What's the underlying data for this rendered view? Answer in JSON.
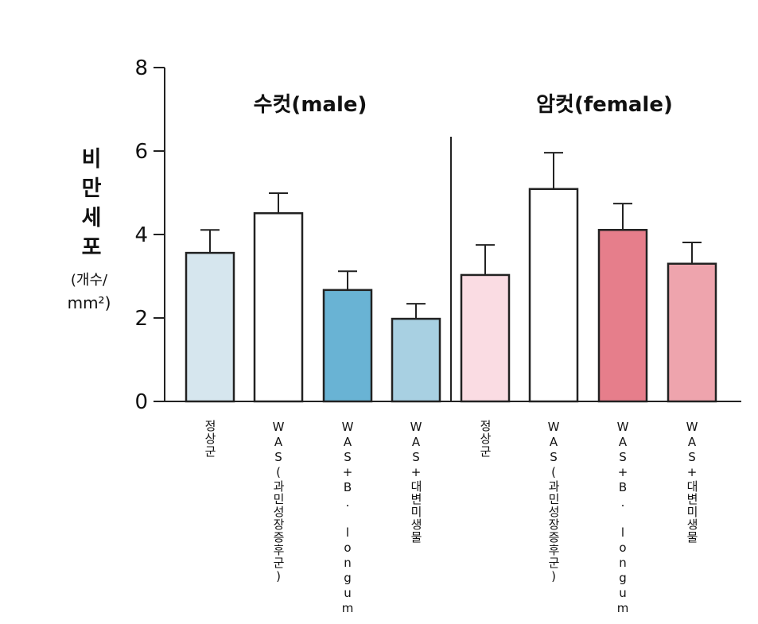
{
  "chart_data": {
    "type": "bar",
    "y_label": "비만세포",
    "y_unit_lines": [
      "(개수/",
      "mm²)"
    ],
    "groups": [
      "수컷(male)",
      "암컷(female)"
    ],
    "categories": [
      "정상군",
      "WAS(과민성장증후군)",
      "WAS+B. longum",
      "WAS+대변미생물",
      "정상군",
      "WAS(과민성장증후군)",
      "WAS+B. longum",
      "WAS+대변미생물"
    ],
    "values": [
      3.56,
      4.51,
      2.67,
      1.98,
      3.03,
      5.09,
      4.11,
      3.3
    ],
    "errors": [
      0.55,
      0.48,
      0.45,
      0.36,
      0.72,
      0.87,
      0.63,
      0.51
    ],
    "colors": [
      "#d6e6ee",
      "#ffffff",
      "#69b3d4",
      "#a8d0e2",
      "#fadce3",
      "#ffffff",
      "#e67e8b",
      "#eea4ad"
    ],
    "ylim": [
      0,
      8
    ],
    "yticks": [
      0,
      2,
      4,
      6,
      8
    ]
  }
}
